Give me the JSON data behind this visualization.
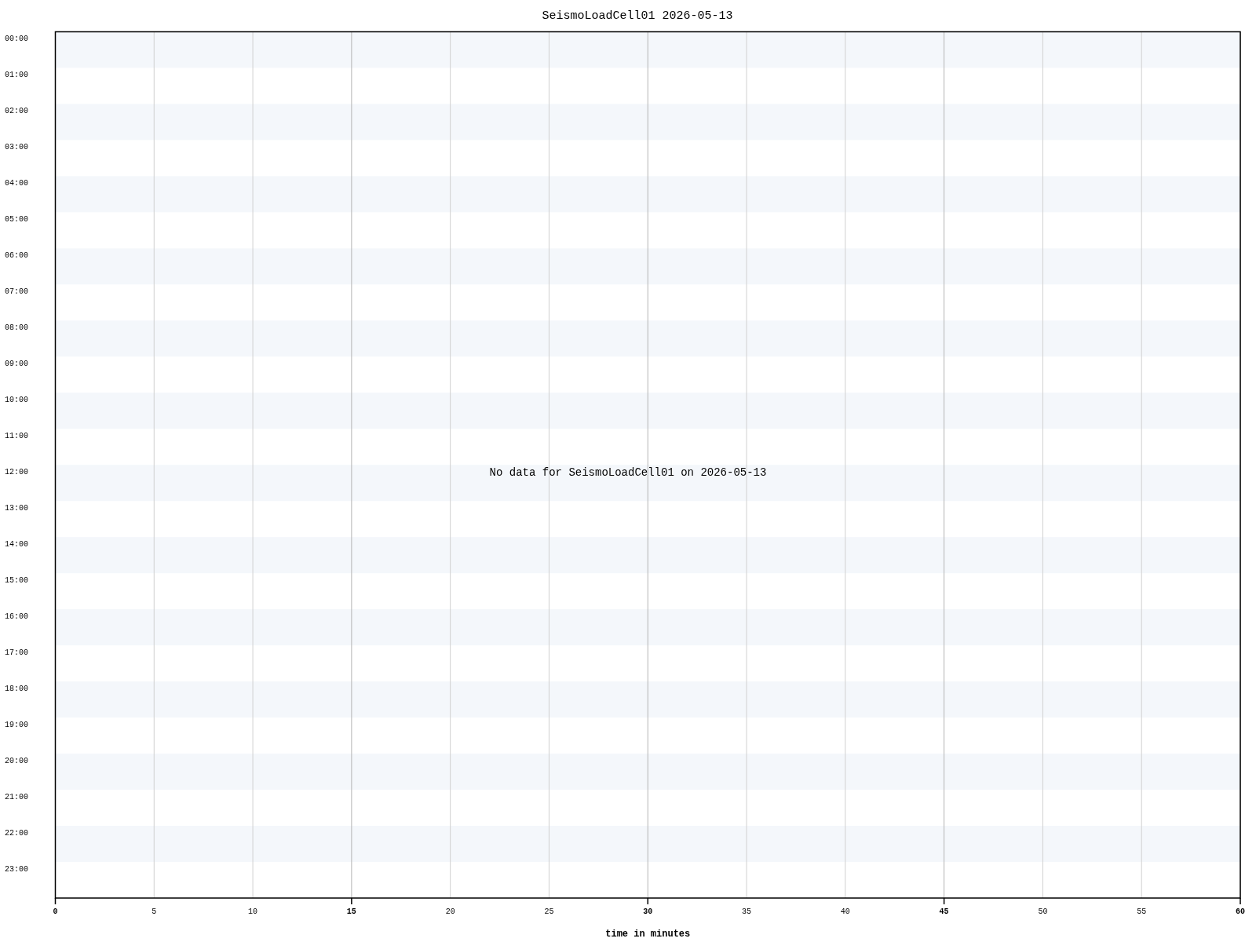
{
  "chart_data": {
    "type": "line",
    "title": "SeismoLoadCell01 2026-05-13",
    "xlabel": "time in minutes",
    "xlim": [
      0,
      60
    ],
    "xticks": [
      0,
      5,
      10,
      15,
      20,
      25,
      30,
      35,
      40,
      45,
      50,
      55,
      60
    ],
    "ylim": [
      23.8,
      -0.2
    ],
    "yticks": [
      {
        "value": 0,
        "label": "00:00"
      },
      {
        "value": 1,
        "label": "01:00"
      },
      {
        "value": 2,
        "label": "02:00"
      },
      {
        "value": 3,
        "label": "03:00"
      },
      {
        "value": 4,
        "label": "04:00"
      },
      {
        "value": 5,
        "label": "05:00"
      },
      {
        "value": 6,
        "label": "06:00"
      },
      {
        "value": 7,
        "label": "07:00"
      },
      {
        "value": 8,
        "label": "08:00"
      },
      {
        "value": 9,
        "label": "09:00"
      },
      {
        "value": 10,
        "label": "10:00"
      },
      {
        "value": 11,
        "label": "11:00"
      },
      {
        "value": 12,
        "label": "12:00"
      },
      {
        "value": 13,
        "label": "13:00"
      },
      {
        "value": 14,
        "label": "14:00"
      },
      {
        "value": 15,
        "label": "15:00"
      },
      {
        "value": 16,
        "label": "16:00"
      },
      {
        "value": 17,
        "label": "17:00"
      },
      {
        "value": 18,
        "label": "18:00"
      },
      {
        "value": 19,
        "label": "19:00"
      },
      {
        "value": 20,
        "label": "20:00"
      },
      {
        "value": 21,
        "label": "21:00"
      },
      {
        "value": 22,
        "label": "22:00"
      },
      {
        "value": 23,
        "label": "23:00"
      }
    ],
    "grid": "x",
    "bands": [
      {
        "axis": "y",
        "from": -0.2,
        "to": 0.8,
        "color": "#f4f7fb"
      },
      {
        "axis": "y",
        "from": 1.8,
        "to": 2.8,
        "color": "#f4f7fb"
      },
      {
        "axis": "y",
        "from": 3.8,
        "to": 4.8,
        "color": "#f4f7fb"
      },
      {
        "axis": "y",
        "from": 5.8,
        "to": 6.8,
        "color": "#f4f7fb"
      },
      {
        "axis": "y",
        "from": 7.8,
        "to": 8.8,
        "color": "#f4f7fb"
      },
      {
        "axis": "y",
        "from": 9.8,
        "to": 10.8,
        "color": "#f4f7fb"
      },
      {
        "axis": "y",
        "from": 11.8,
        "to": 12.8,
        "color": "#f4f7fb"
      },
      {
        "axis": "y",
        "from": 13.8,
        "to": 14.8,
        "color": "#f4f7fb"
      },
      {
        "axis": "y",
        "from": 15.8,
        "to": 16.8,
        "color": "#f4f7fb"
      },
      {
        "axis": "y",
        "from": 17.8,
        "to": 18.8,
        "color": "#f4f7fb"
      },
      {
        "axis": "y",
        "from": 19.8,
        "to": 20.8,
        "color": "#f4f7fb"
      },
      {
        "axis": "y",
        "from": 21.8,
        "to": 22.8,
        "color": "#f4f7fb"
      }
    ],
    "annotations": [
      "No data for SeismoLoadCell01 on 2026-05-13"
    ]
  }
}
